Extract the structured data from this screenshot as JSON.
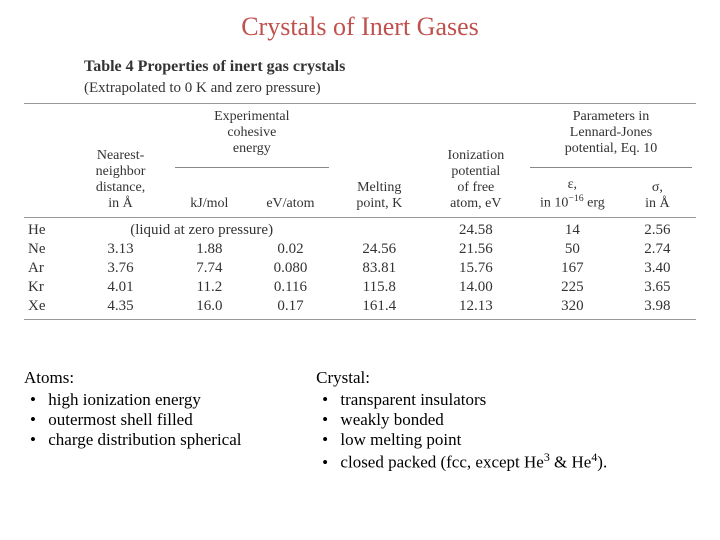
{
  "title": "Crystals of Inert Gases",
  "table": {
    "caption": "Table 4  Properties of inert gas crystals",
    "subcaption": "(Extrapolated to 0 K and zero pressure)",
    "headers": {
      "nn": "Nearest-\nneighbor\ndistance,\nin Å",
      "cohesive_group": "Experimental\ncohesive\nenergy",
      "kj": "kJ/mol",
      "ev": "eV/atom",
      "mp": "Melting\npoint, K",
      "ion": "Ionization\npotential\nof free\natom, eV",
      "lj_group": "Parameters in\nLennard-Jones\npotential, Eq. 10",
      "eps": "ε,\nin 10⁻¹⁶ erg",
      "sigma": "σ,\nin Å"
    },
    "liquid_note": "(liquid at zero pressure)",
    "rows": [
      {
        "el": "He",
        "nn": "",
        "kj": "",
        "ev": "",
        "mp": "",
        "ion": "24.58",
        "eps": "14",
        "sig": "2.56",
        "liquid": true
      },
      {
        "el": "Ne",
        "nn": "3.13",
        "kj": "1.88",
        "ev": "0.02",
        "mp": "24.56",
        "ion": "21.56",
        "eps": "50",
        "sig": "2.74"
      },
      {
        "el": "Ar",
        "nn": "3.76",
        "kj": "7.74",
        "ev": "0.080",
        "mp": "83.81",
        "ion": "15.76",
        "eps": "167",
        "sig": "3.40"
      },
      {
        "el": "Kr",
        "nn": "4.01",
        "kj": "11.2",
        "ev": "0.116",
        "mp": "115.8",
        "ion": "14.00",
        "eps": "225",
        "sig": "3.65"
      },
      {
        "el": "Xe",
        "nn": "4.35",
        "kj": "16.0",
        "ev": "0.17",
        "mp": "161.4",
        "ion": "12.13",
        "eps": "320",
        "sig": "3.98"
      }
    ]
  },
  "notes_left": {
    "head": "Atoms:",
    "items": [
      "high ionization energy",
      "outermost shell filled",
      "charge distribution spherical"
    ]
  },
  "notes_right": {
    "head": "Crystal:",
    "items": [
      "transparent insulators",
      "weakly bonded",
      "low melting point",
      "closed packed (fcc, except He³ & He⁴)."
    ]
  },
  "style": {
    "title_color": "#c0504d",
    "title_fontsize": 26,
    "body_fontsize": 17,
    "table_fontsize": 15,
    "font_family": "Times New Roman",
    "rule_color": "#999999",
    "background": "#ffffff"
  }
}
